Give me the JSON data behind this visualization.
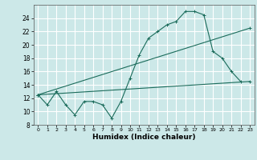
{
  "title": "",
  "xlabel": "Humidex (Indice chaleur)",
  "bg_color": "#cce8e8",
  "grid_color": "#ffffff",
  "line_color": "#1a6b5a",
  "xlim": [
    -0.5,
    23.5
  ],
  "ylim": [
    8,
    26
  ],
  "yticks": [
    8,
    10,
    12,
    14,
    16,
    18,
    20,
    22,
    24
  ],
  "xticks": [
    0,
    1,
    2,
    3,
    4,
    5,
    6,
    7,
    8,
    9,
    10,
    11,
    12,
    13,
    14,
    15,
    16,
    17,
    18,
    19,
    20,
    21,
    22,
    23
  ],
  "line1": {
    "x": [
      0,
      23
    ],
    "y": [
      12.5,
      14.5
    ]
  },
  "line2": {
    "x": [
      0,
      23
    ],
    "y": [
      12.5,
      22.5
    ]
  },
  "curve_x": [
    0,
    1,
    2,
    3,
    4,
    5,
    6,
    7,
    8,
    9,
    10,
    11,
    12,
    13,
    14,
    15,
    16,
    17,
    18,
    19,
    20,
    21,
    22
  ],
  "curve_y": [
    12.5,
    11.0,
    13.0,
    11.0,
    9.5,
    11.5,
    11.5,
    11.0,
    9.0,
    11.5,
    15.0,
    18.5,
    21.0,
    22.0,
    23.0,
    23.5,
    25.0,
    25.0,
    24.5,
    19.0,
    18.0,
    16.0,
    14.5
  ]
}
